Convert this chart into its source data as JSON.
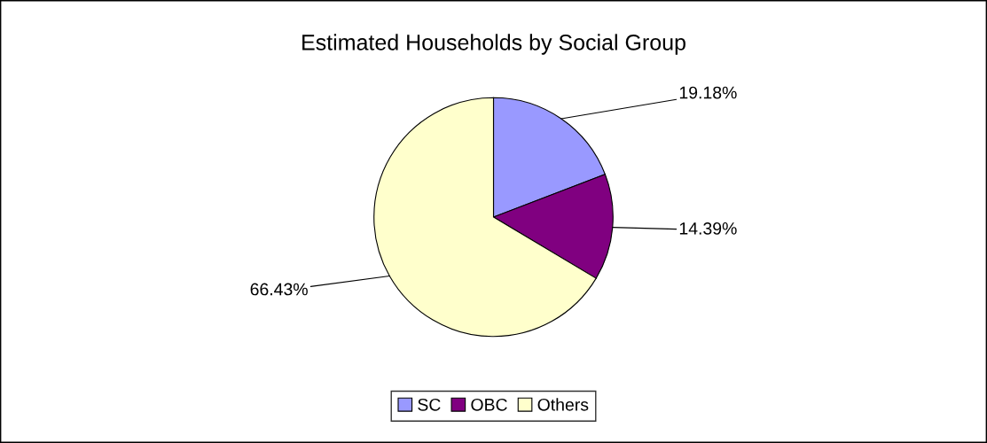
{
  "chart_data": {
    "type": "pie",
    "title": "Estimated Households by Social Group",
    "categories": [
      "SC",
      "OBC",
      "Others"
    ],
    "values": [
      19.18,
      14.39,
      66.43
    ],
    "colors": [
      "#9999ff",
      "#800080",
      "#ffffcc"
    ],
    "value_labels": [
      "19.18%",
      "14.39%",
      "66.43%"
    ],
    "legend": "bottom"
  }
}
